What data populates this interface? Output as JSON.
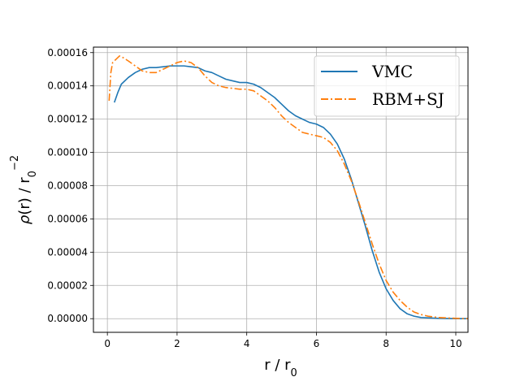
{
  "chart_data": {
    "type": "line",
    "xlabel": "r / r0",
    "ylabel": "ρ(r) / r0^-2",
    "xlim": [
      -0.4,
      10.35
    ],
    "ylim": [
      -8.2e-06,
      0.0001633
    ],
    "xticks": [
      0,
      2,
      4,
      6,
      8,
      10
    ],
    "yticks": [
      0,
      2e-05,
      4e-05,
      6e-05,
      8e-05,
      0.0001,
      0.00012,
      0.00014,
      0.00016
    ],
    "xtick_labels": [
      "0",
      "2",
      "4",
      "6",
      "8",
      "10"
    ],
    "ytick_labels": [
      "0.00000",
      "0.00002",
      "0.00004",
      "0.00006",
      "0.00008",
      "0.00010",
      "0.00012",
      "0.00014",
      "0.00016"
    ],
    "grid": true,
    "legend_position": "upper-right",
    "series": [
      {
        "name": "VMC",
        "color": "#1f77b4",
        "style": "solid",
        "points": [
          [
            0.2,
            0.00013
          ],
          [
            0.3,
            0.000136
          ],
          [
            0.4,
            0.000141
          ],
          [
            0.6,
            0.000145
          ],
          [
            0.8,
            0.000148
          ],
          [
            1.0,
            0.00015
          ],
          [
            1.2,
            0.000151
          ],
          [
            1.4,
            0.000151
          ],
          [
            1.6,
            0.0001515
          ],
          [
            1.8,
            0.000152
          ],
          [
            2.0,
            0.000152
          ],
          [
            2.2,
            0.000152
          ],
          [
            2.4,
            0.0001515
          ],
          [
            2.6,
            0.000151
          ],
          [
            2.8,
            0.000149
          ],
          [
            3.0,
            0.000148
          ],
          [
            3.2,
            0.000146
          ],
          [
            3.4,
            0.000144
          ],
          [
            3.6,
            0.000143
          ],
          [
            3.8,
            0.000142
          ],
          [
            4.0,
            0.000142
          ],
          [
            4.2,
            0.000141
          ],
          [
            4.4,
            0.000139
          ],
          [
            4.6,
            0.000136
          ],
          [
            4.8,
            0.000133
          ],
          [
            5.0,
            0.000129
          ],
          [
            5.2,
            0.000125
          ],
          [
            5.4,
            0.000122
          ],
          [
            5.6,
            0.00012
          ],
          [
            5.8,
            0.000118
          ],
          [
            6.0,
            0.000117
          ],
          [
            6.2,
            0.000115
          ],
          [
            6.4,
            0.000111
          ],
          [
            6.6,
            0.000105
          ],
          [
            6.8,
            9.6e-05
          ],
          [
            7.0,
            8.4e-05
          ],
          [
            7.2,
            7e-05
          ],
          [
            7.4,
            5.6e-05
          ],
          [
            7.6,
            4.1e-05
          ],
          [
            7.8,
            2.8e-05
          ],
          [
            8.0,
            1.8e-05
          ],
          [
            8.2,
            1.1e-05
          ],
          [
            8.4,
            6e-06
          ],
          [
            8.6,
            3e-06
          ],
          [
            8.8,
            1.5e-06
          ],
          [
            9.0,
            7e-07
          ],
          [
            9.5,
            2e-07
          ],
          [
            10.0,
            0.0
          ],
          [
            10.35,
            0.0
          ]
        ]
      },
      {
        "name": "RBM+SJ",
        "color": "#ff7f0e",
        "style": "dashdot",
        "points": [
          [
            0.05,
            0.000131
          ],
          [
            0.1,
            0.000148
          ],
          [
            0.15,
            0.000154
          ],
          [
            0.25,
            0.000156
          ],
          [
            0.35,
            0.000158
          ],
          [
            0.45,
            0.000157
          ],
          [
            0.6,
            0.000155
          ],
          [
            0.8,
            0.000152
          ],
          [
            1.0,
            0.000149
          ],
          [
            1.2,
            0.000148
          ],
          [
            1.4,
            0.000148
          ],
          [
            1.6,
            0.00015
          ],
          [
            1.8,
            0.000152
          ],
          [
            2.0,
            0.000154
          ],
          [
            2.2,
            0.000155
          ],
          [
            2.4,
            0.000154
          ],
          [
            2.6,
            0.000151
          ],
          [
            2.8,
            0.000146
          ],
          [
            3.0,
            0.000142
          ],
          [
            3.2,
            0.00014
          ],
          [
            3.4,
            0.000139
          ],
          [
            3.6,
            0.0001385
          ],
          [
            3.8,
            0.000138
          ],
          [
            4.0,
            0.000138
          ],
          [
            4.2,
            0.000137
          ],
          [
            4.4,
            0.000134
          ],
          [
            4.6,
            0.000131
          ],
          [
            4.8,
            0.000127
          ],
          [
            5.0,
            0.000122
          ],
          [
            5.2,
            0.000118
          ],
          [
            5.4,
            0.000115
          ],
          [
            5.6,
            0.000112
          ],
          [
            5.8,
            0.000111
          ],
          [
            6.0,
            0.00011
          ],
          [
            6.2,
            0.000109
          ],
          [
            6.4,
            0.000106
          ],
          [
            6.6,
            0.000101
          ],
          [
            6.8,
            9.3e-05
          ],
          [
            7.0,
            8.3e-05
          ],
          [
            7.2,
            7.1e-05
          ],
          [
            7.4,
            5.8e-05
          ],
          [
            7.6,
            4.5e-05
          ],
          [
            7.8,
            3.3e-05
          ],
          [
            8.0,
            2.3e-05
          ],
          [
            8.2,
            1.6e-05
          ],
          [
            8.4,
            1.1e-05
          ],
          [
            8.6,
            7e-06
          ],
          [
            8.8,
            4e-06
          ],
          [
            9.0,
            2.5e-06
          ],
          [
            9.2,
            1.5e-06
          ],
          [
            9.5,
            7e-07
          ],
          [
            10.0,
            2e-07
          ],
          [
            10.35,
            0.0
          ]
        ]
      }
    ]
  }
}
